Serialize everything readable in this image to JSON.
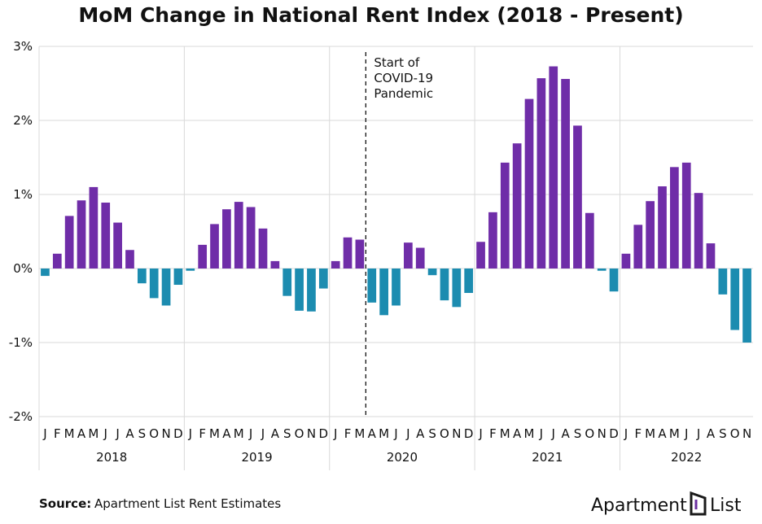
{
  "chart_data": {
    "type": "bar",
    "title": "MoM Change in National Rent Index (2018 - Present)",
    "categories": [
      "J",
      "F",
      "M",
      "A",
      "M",
      "J",
      "J",
      "A",
      "S",
      "O",
      "N",
      "D",
      "J",
      "F",
      "M",
      "A",
      "M",
      "J",
      "J",
      "A",
      "S",
      "O",
      "N",
      "D",
      "J",
      "F",
      "M",
      "A",
      "M",
      "J",
      "J",
      "A",
      "S",
      "O",
      "N",
      "D",
      "J",
      "F",
      "M",
      "A",
      "M",
      "J",
      "J",
      "A",
      "S",
      "O",
      "N",
      "D",
      "J",
      "F",
      "M",
      "A",
      "M",
      "J",
      "J",
      "A",
      "S",
      "O",
      "N"
    ],
    "years": [
      "2018",
      "2019",
      "2020",
      "2021",
      "2022"
    ],
    "values": [
      -0.1,
      0.2,
      0.71,
      0.92,
      1.1,
      0.89,
      0.62,
      0.25,
      -0.2,
      -0.4,
      -0.5,
      -0.22,
      -0.03,
      0.32,
      0.6,
      0.8,
      0.9,
      0.83,
      0.54,
      0.1,
      -0.37,
      -0.57,
      -0.58,
      -0.27,
      0.1,
      0.42,
      0.39,
      -0.46,
      -0.63,
      -0.5,
      0.35,
      0.28,
      -0.09,
      -0.43,
      -0.52,
      -0.33,
      0.36,
      0.76,
      1.43,
      1.69,
      2.29,
      2.57,
      2.73,
      2.56,
      1.93,
      0.75,
      -0.03,
      -0.31,
      0.2,
      0.59,
      0.91,
      1.11,
      1.37,
      1.43,
      1.02,
      0.34,
      -0.35,
      -0.83,
      -1.0
    ],
    "positive_color": "#6f2da8",
    "negative_color": "#1c8cb0",
    "ylim": [
      -2,
      3
    ],
    "yticks": [
      {
        "value": -2,
        "label": "-2%"
      },
      {
        "value": -1,
        "label": "-1%"
      },
      {
        "value": 0,
        "label": "0%"
      },
      {
        "value": 1,
        "label": "1%"
      },
      {
        "value": 2,
        "label": "2%"
      },
      {
        "value": 3,
        "label": "3%"
      }
    ],
    "grid": true,
    "annotation": [
      "Start of",
      "COVID-19",
      "Pandemic"
    ],
    "source_label": "Source:",
    "source": "Apartment List Rent Estimates"
  },
  "logo": [
    "Apartment",
    "List"
  ]
}
